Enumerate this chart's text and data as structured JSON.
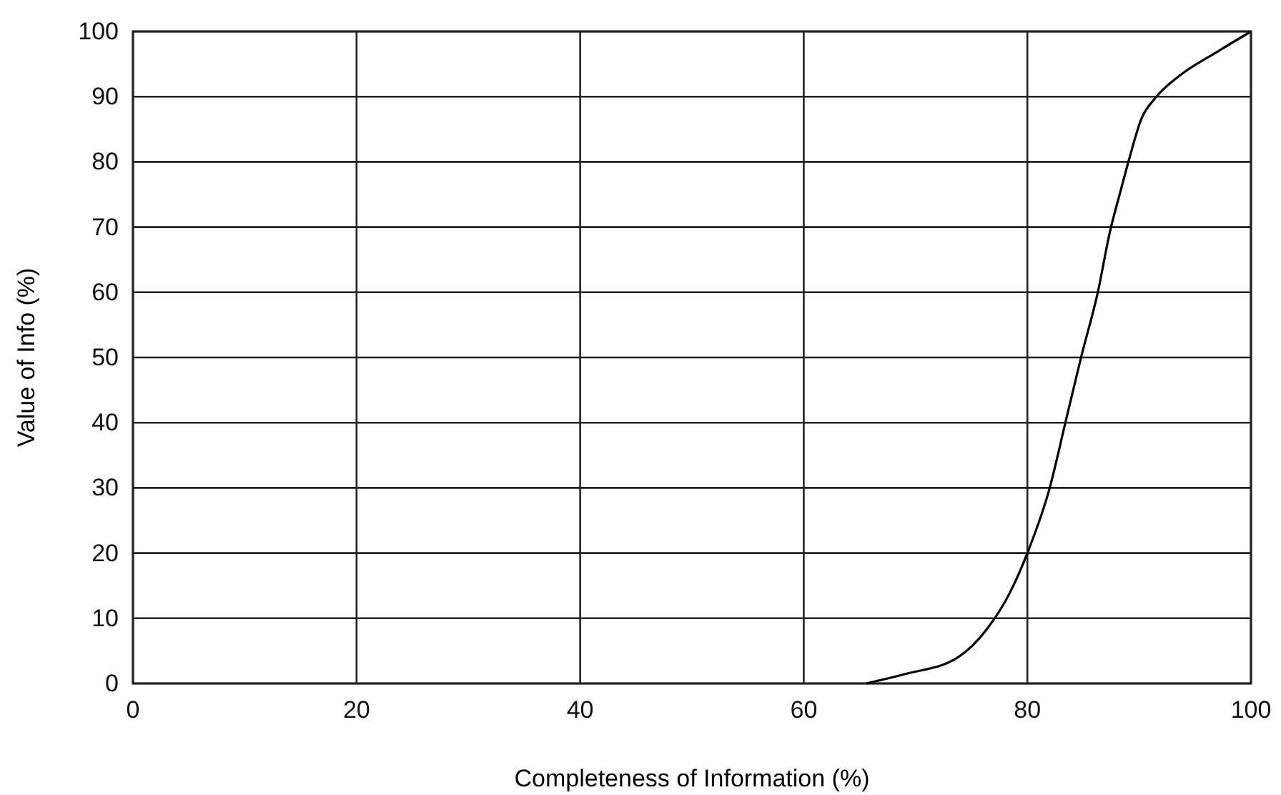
{
  "chart_data": {
    "type": "line",
    "xlabel": "Completeness of Information (%)",
    "ylabel": "Value of Info (%)",
    "xlim": [
      0,
      100
    ],
    "ylim": [
      0,
      100
    ],
    "xticks": [
      0,
      20,
      40,
      60,
      80,
      100
    ],
    "yticks": [
      0,
      10,
      20,
      30,
      40,
      50,
      60,
      70,
      80,
      90,
      100
    ],
    "grid": true,
    "marker": "none",
    "line_style": "solid",
    "series": [
      {
        "color": "#000000",
        "x": [
          65.6,
          69.2,
          73.7,
          76.5,
          78.4,
          80,
          82,
          83.4,
          84.8,
          86.3,
          87.4,
          88.3,
          89.1,
          90.2,
          91.5,
          93.6,
          97,
          100
        ],
        "values": [
          0,
          1.5,
          3.9,
          8.6,
          13.8,
          20,
          30,
          40,
          50,
          60,
          69.4,
          75.3,
          80.4,
          86.6,
          89.9,
          93.2,
          96.9,
          100
        ]
      }
    ]
  }
}
